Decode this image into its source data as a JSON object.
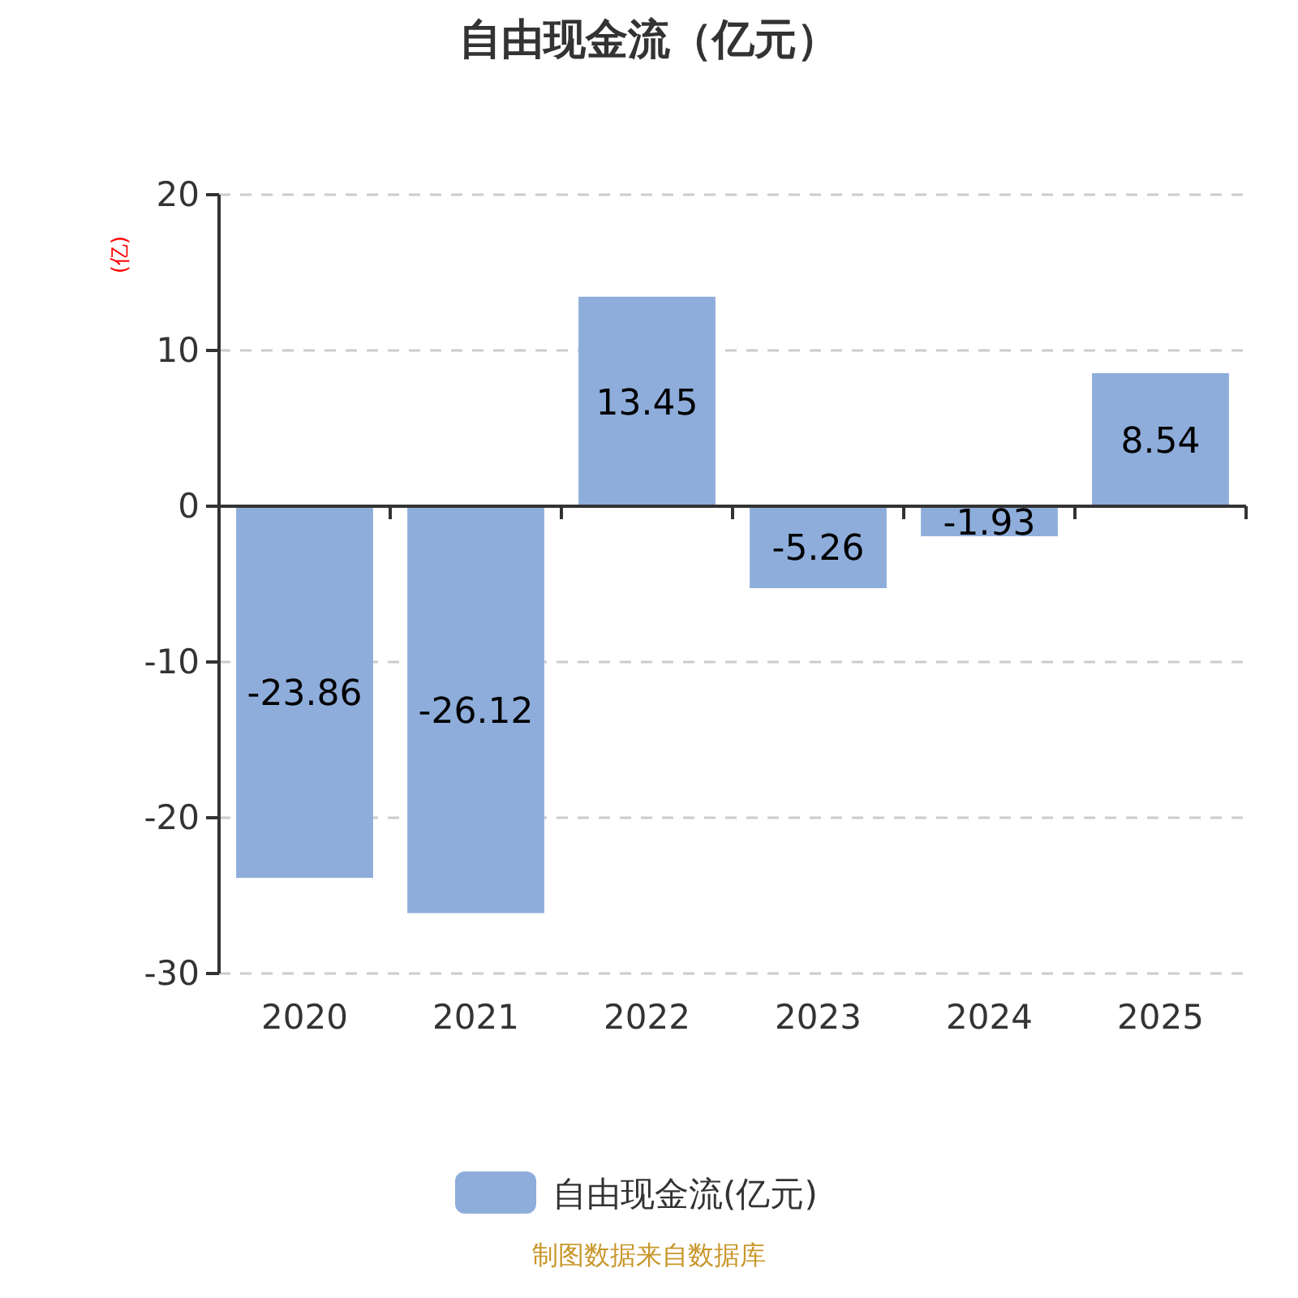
{
  "chart_data": {
    "type": "bar",
    "title": "自由现金流（亿元）",
    "ylabel": "(亿)",
    "categories": [
      "2020",
      "2021",
      "2022",
      "2023",
      "2024",
      "2025"
    ],
    "series": [
      {
        "name": "自由现金流(亿元)",
        "color": "#8eaddb",
        "values": [
          -23.86,
          -26.12,
          13.45,
          -5.26,
          -1.93,
          8.54
        ]
      }
    ],
    "ylim": [
      -30,
      20
    ],
    "yticks": [
      -30,
      -20,
      -10,
      0,
      10,
      20
    ],
    "grid": "y",
    "legend": "bottom",
    "data_labels": true,
    "annotations": [
      "制图数据来自数据库"
    ]
  }
}
